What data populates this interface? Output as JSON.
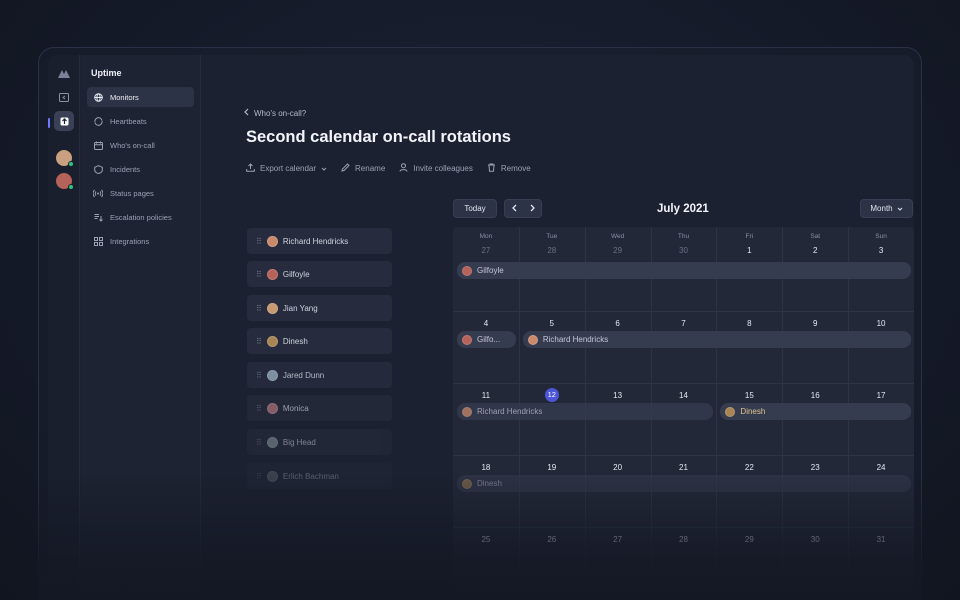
{
  "sidebar": {
    "brand": "Uptime",
    "items": [
      {
        "label": "Monitors",
        "icon": "globe-icon",
        "active": true
      },
      {
        "label": "Heartbeats",
        "icon": "heartbeat-icon"
      },
      {
        "label": "Who's on-call",
        "icon": "calendar-icon"
      },
      {
        "label": "Incidents",
        "icon": "alert-icon"
      },
      {
        "label": "Status pages",
        "icon": "broadcast-icon"
      },
      {
        "label": "Escalation policies",
        "icon": "escalation-icon"
      },
      {
        "label": "Integrations",
        "icon": "grid-icon"
      }
    ]
  },
  "header": {
    "back_label": "Who's on-call?",
    "title": "Second calendar on-call rotations",
    "actions": {
      "export": "Export calendar",
      "rename": "Rename",
      "invite": "Invite colleagues",
      "remove": "Remove"
    }
  },
  "people": [
    {
      "name": "Richard Hendricks",
      "color": "#c98a6b"
    },
    {
      "name": "Gilfoyle",
      "color": "#b5625a"
    },
    {
      "name": "Jian Yang",
      "color": "#c79a72"
    },
    {
      "name": "Dinesh",
      "color": "#a98556"
    },
    {
      "name": "Jared Dunn",
      "color": "#8fa3b5"
    },
    {
      "name": "Monica",
      "color": "#b3777f"
    },
    {
      "name": "Big Head",
      "color": "#8c9aa0"
    },
    {
      "name": "Erlich Bachman",
      "color": "#7d7f86"
    }
  ],
  "calendar": {
    "today_label": "Today",
    "prev_icon": "chevron-left-icon",
    "next_icon": "chevron-right-icon",
    "month_title": "July 2021",
    "view_label": "Month",
    "daynames": [
      "Mon",
      "Tue",
      "Wed",
      "Thu",
      "Fri",
      "Sat",
      "Sun"
    ],
    "weeks": [
      [
        "27",
        "28",
        "29",
        "30",
        "1",
        "2",
        "3"
      ],
      [
        "4",
        "5",
        "6",
        "7",
        "8",
        "9",
        "10"
      ],
      [
        "11",
        "12",
        "13",
        "14",
        "15",
        "16",
        "17"
      ],
      [
        "18",
        "19",
        "20",
        "21",
        "22",
        "23",
        "24"
      ],
      [
        "25",
        "26",
        "27",
        "28",
        "29",
        "30",
        "31"
      ]
    ],
    "today": "12",
    "events": [
      {
        "label": "Gilfoyle",
        "week": 0,
        "start_day": 0,
        "end_day": 6
      },
      {
        "label": "Gilfo...",
        "week": 1,
        "start_day": 0,
        "end_day": 0
      },
      {
        "label": "Richard Hendricks",
        "week": 1,
        "start_day": 1,
        "end_day": 6
      },
      {
        "label": "Richard Hendricks",
        "week": 2,
        "start_day": 0,
        "end_day": 3
      },
      {
        "label": "Dinesh",
        "week": 2,
        "start_day": 4,
        "end_day": 6
      },
      {
        "label": "Dinesh",
        "week": 3,
        "start_day": 0,
        "end_day": 6
      }
    ]
  }
}
